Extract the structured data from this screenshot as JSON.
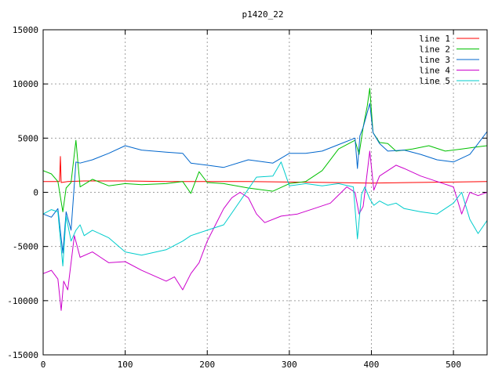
{
  "chart_data": {
    "type": "line",
    "title": "p1420_22",
    "xlabel": "",
    "ylabel": "",
    "xlim": [
      0,
      541
    ],
    "ylim": [
      -15000,
      15000
    ],
    "xticks": [
      0,
      100,
      200,
      300,
      400,
      500
    ],
    "yticks": [
      -15000,
      -10000,
      -5000,
      0,
      5000,
      10000,
      15000
    ],
    "grid": true,
    "legend_position": "top-right",
    "series": [
      {
        "name": "line 1",
        "color": "#ff0000",
        "x": [
          0,
          20,
          21,
          22,
          30,
          50,
          100,
          150,
          200,
          250,
          300,
          350,
          400,
          450,
          500,
          541
        ],
        "y": [
          1000,
          1000,
          3300,
          900,
          1000,
          1050,
          1050,
          1000,
          1000,
          1000,
          950,
          900,
          850,
          900,
          950,
          1000
        ]
      },
      {
        "name": "line 2",
        "color": "#00c000",
        "x": [
          0,
          10,
          18,
          24,
          28,
          34,
          40,
          45,
          60,
          80,
          100,
          120,
          150,
          170,
          180,
          190,
          200,
          220,
          250,
          280,
          300,
          320,
          340,
          360,
          380,
          385,
          390,
          395,
          398,
          402,
          410,
          420,
          430,
          450,
          470,
          490,
          510,
          530,
          541
        ],
        "y": [
          2000,
          1700,
          1000,
          -1800,
          400,
          900,
          4800,
          500,
          1200,
          600,
          800,
          700,
          800,
          1000,
          -100,
          1900,
          900,
          800,
          400,
          100,
          800,
          1000,
          2000,
          4000,
          4800,
          3500,
          6000,
          8000,
          9600,
          5500,
          4600,
          4500,
          3800,
          4000,
          4300,
          3800,
          4000,
          4200,
          4300
        ]
      },
      {
        "name": "line 3",
        "color": "#0066cc",
        "x": [
          0,
          10,
          18,
          24,
          28,
          34,
          40,
          45,
          60,
          80,
          100,
          120,
          150,
          170,
          180,
          200,
          220,
          250,
          280,
          300,
          320,
          340,
          360,
          380,
          383,
          386,
          390,
          398,
          402,
          410,
          420,
          440,
          460,
          480,
          500,
          520,
          530,
          541
        ],
        "y": [
          -2000,
          -2300,
          -1500,
          -5600,
          -1800,
          -3500,
          2800,
          2700,
          3000,
          3600,
          4300,
          3900,
          3700,
          3600,
          2700,
          2500,
          2300,
          3000,
          2700,
          3600,
          3600,
          3800,
          4400,
          5000,
          2200,
          5200,
          6000,
          8200,
          5500,
          4500,
          3800,
          3900,
          3500,
          3000,
          2800,
          3500,
          4500,
          5600
        ]
      },
      {
        "name": "line 4",
        "color": "#cc00cc",
        "x": [
          0,
          10,
          18,
          22,
          25,
          30,
          38,
          45,
          60,
          80,
          100,
          120,
          150,
          160,
          170,
          180,
          190,
          200,
          210,
          220,
          230,
          240,
          250,
          260,
          270,
          290,
          310,
          330,
          350,
          370,
          380,
          385,
          390,
          398,
          403,
          410,
          430,
          440,
          460,
          480,
          500,
          510,
          520,
          530,
          541
        ],
        "y": [
          -7500,
          -7200,
          -8000,
          -10900,
          -8200,
          -9000,
          -4000,
          -6000,
          -5500,
          -6500,
          -6400,
          -7200,
          -8200,
          -7800,
          -9000,
          -7500,
          -6500,
          -4500,
          -3000,
          -1500,
          -500,
          0,
          -500,
          -2000,
          -2800,
          -2200,
          -2000,
          -1500,
          -1000,
          500,
          0,
          -2000,
          -1300,
          3800,
          200,
          1500,
          2500,
          2200,
          1500,
          1000,
          500,
          -2000,
          0,
          -300,
          0
        ]
      },
      {
        "name": "line 5",
        "color": "#00cccc",
        "x": [
          0,
          10,
          18,
          24,
          28,
          34,
          40,
          45,
          50,
          60,
          80,
          100,
          120,
          150,
          170,
          180,
          200,
          220,
          240,
          260,
          280,
          290,
          300,
          320,
          340,
          360,
          378,
          383,
          388,
          392,
          398,
          403,
          410,
          420,
          430,
          440,
          460,
          480,
          500,
          510,
          520,
          530,
          541
        ],
        "y": [
          -2000,
          -1600,
          -1800,
          -6800,
          -2200,
          -4500,
          -3500,
          -3000,
          -4000,
          -3500,
          -4200,
          -5500,
          -5800,
          -5300,
          -4500,
          -4000,
          -3500,
          -3000,
          -800,
          1400,
          1500,
          2800,
          600,
          800,
          600,
          800,
          500,
          -4300,
          -200,
          500,
          -600,
          -1200,
          -800,
          -1200,
          -1000,
          -1500,
          -1800,
          -2000,
          -1000,
          0,
          -2500,
          -3800,
          -2600
        ]
      }
    ]
  }
}
